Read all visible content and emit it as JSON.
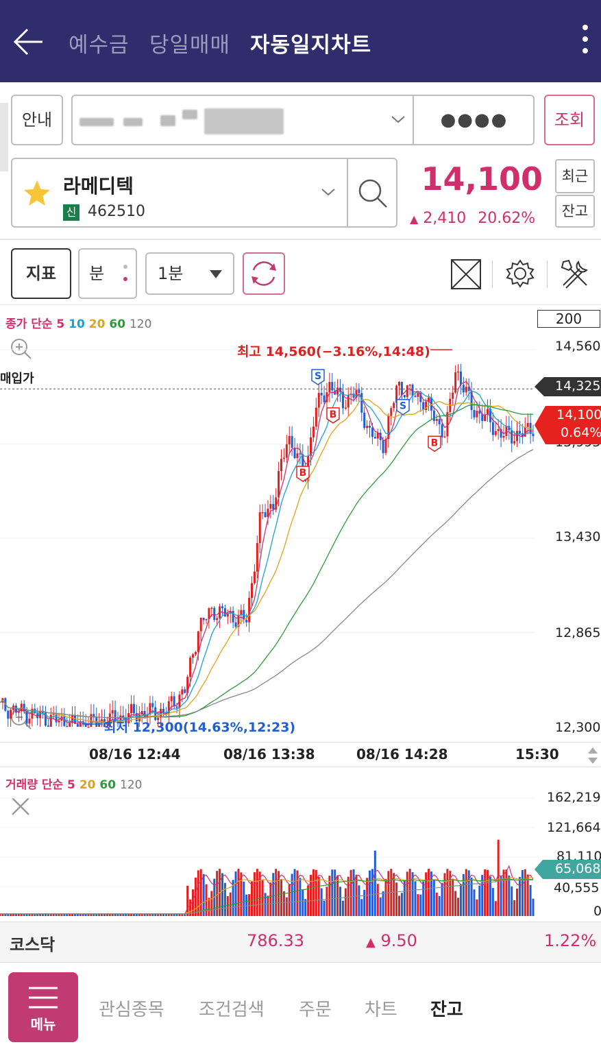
{
  "header": {
    "tabs": [
      {
        "label": "예수금",
        "active": false
      },
      {
        "label": "당일매매",
        "active": false
      },
      {
        "label": "자동일지차트",
        "active": true
      }
    ]
  },
  "controls": {
    "info_label": "안내",
    "password_mask": "●●●●",
    "query_label": "조회",
    "recent_label": "최근",
    "balance_label": "잔고"
  },
  "stock": {
    "name": "라메디텍",
    "badge": "신",
    "code": "462510",
    "price": "14,100",
    "change": "2,410",
    "change_pct": "20.62%"
  },
  "chart_toolbar": {
    "indicator_label": "지표",
    "period_label": "분",
    "interval_value": "1분"
  },
  "legend": {
    "main_prefix": "종가 단순",
    "ma": [
      "5",
      "10",
      "20",
      "60",
      "120"
    ],
    "volume_prefix": "거래량 단순",
    "vol_ma": [
      "5",
      "20",
      "60",
      "120"
    ]
  },
  "chart_labels": {
    "count_box": "200",
    "purchase_price_label": "매입가",
    "high_annotation": "최고 14,560(−3.16%,14:48)",
    "low_annotation": "최저 12,300(14.63%,12:23)",
    "buy_marker": "B",
    "sell_marker": "S",
    "current_tag_price": "14,100",
    "current_tag_pct": "0.64%",
    "purchase_tag": "14,325",
    "volume_tag": "65,068"
  },
  "chart_data": {
    "type": "candlestick",
    "y_axis": [
      "14,560",
      "13,995",
      "13,430",
      "12,865",
      "12,300"
    ],
    "x_axis": [
      "08/16 12:44",
      "08/16 13:38",
      "08/16 14:28",
      "15:30"
    ],
    "high": 14560,
    "low": 12300,
    "current": 14100,
    "purchase_price": 14325,
    "volume_axis": [
      "162,219",
      "121,664",
      "81,110",
      "40,555",
      "0"
    ],
    "current_volume": 65068
  },
  "market": {
    "index_name": "코스닥",
    "value": "786.33",
    "change": "9.50",
    "change_pct": "1.22%"
  },
  "bottom_nav": {
    "menu_label": "메뉴",
    "items": [
      {
        "label": "관심종목",
        "active": false
      },
      {
        "label": "조건검색",
        "active": false
      },
      {
        "label": "주문",
        "active": false
      },
      {
        "label": "차트",
        "active": false
      },
      {
        "label": "잔고",
        "active": true
      }
    ]
  },
  "colors": {
    "header_bg": "#2f2d6b",
    "up": "#d12f6b",
    "down_candle": "#1f5ed8",
    "up_candle": "#e02020",
    "menu_bg": "#c13b73"
  }
}
